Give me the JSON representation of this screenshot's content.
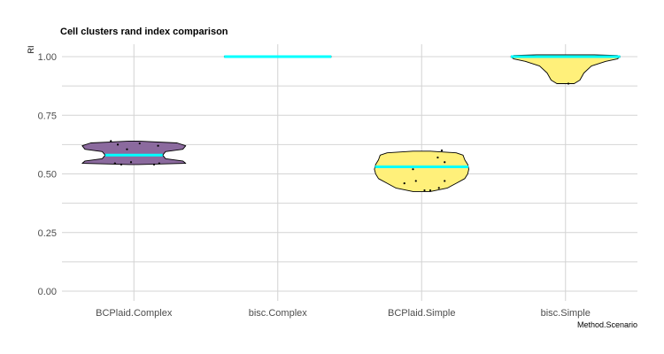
{
  "chart_data": {
    "type": "violin",
    "title": "Cell clusters rand index comparison",
    "xlabel": "Method.Scenario",
    "ylabel": "RI",
    "categories": [
      "BCPlaid.Complex",
      "bisc.Complex",
      "BCPlaid.Simple",
      "bisc.Simple"
    ],
    "ylim": [
      -0.03,
      1.05
    ],
    "yticks": [
      0.0,
      0.25,
      0.5,
      0.75,
      1.0
    ],
    "ytick_labels": [
      "0.00",
      "0.25",
      "0.50",
      "0.75",
      "1.00"
    ],
    "grid": true,
    "median_color": "#00ffff",
    "violins": [
      {
        "category": "BCPlaid.Complex",
        "fill": "#8b6a9e",
        "median": 0.58,
        "profile": [
          [
            0.54,
            0.08
          ],
          [
            0.545,
            0.9
          ],
          [
            0.555,
            0.85
          ],
          [
            0.565,
            0.55
          ],
          [
            0.58,
            0.5
          ],
          [
            0.595,
            0.55
          ],
          [
            0.605,
            0.85
          ],
          [
            0.62,
            0.9
          ],
          [
            0.632,
            0.75
          ],
          [
            0.64,
            0.08
          ]
        ],
        "points": [
          [
            -0.4,
            0.64
          ],
          [
            -0.28,
            0.625
          ],
          [
            -0.12,
            0.605
          ],
          [
            0.1,
            0.63
          ],
          [
            0.42,
            0.62
          ],
          [
            -0.33,
            0.545
          ],
          [
            -0.22,
            0.54
          ],
          [
            -0.05,
            0.55
          ],
          [
            0.35,
            0.54
          ],
          [
            0.44,
            0.545
          ]
        ]
      },
      {
        "category": "bisc.Complex",
        "fill": "#fff07a",
        "median": 1.0,
        "profile": [
          [
            0.997,
            0.05
          ],
          [
            1.0,
            0.93
          ],
          [
            1.003,
            0.05
          ]
        ],
        "points": [
          [
            -0.4,
            1.0
          ],
          [
            -0.25,
            1.0
          ],
          [
            -0.2,
            1.0
          ],
          [
            -0.16,
            1.0
          ],
          [
            0.02,
            1.0
          ],
          [
            0.08,
            1.0
          ],
          [
            0.2,
            1.0
          ],
          [
            0.4,
            1.0
          ]
        ]
      },
      {
        "category": "BCPlaid.Simple",
        "fill": "#fff07a",
        "median": 0.53,
        "profile": [
          [
            0.425,
            0.15
          ],
          [
            0.44,
            0.45
          ],
          [
            0.46,
            0.6
          ],
          [
            0.48,
            0.75
          ],
          [
            0.5,
            0.8
          ],
          [
            0.52,
            0.82
          ],
          [
            0.54,
            0.8
          ],
          [
            0.56,
            0.75
          ],
          [
            0.58,
            0.72
          ],
          [
            0.59,
            0.6
          ],
          [
            0.597,
            0.15
          ]
        ],
        "points": [
          [
            -0.35,
            0.53
          ],
          [
            -0.3,
            0.46
          ],
          [
            -0.15,
            0.52
          ],
          [
            -0.1,
            0.47
          ],
          [
            0.05,
            0.43
          ],
          [
            0.15,
            0.43
          ],
          [
            0.28,
            0.57
          ],
          [
            0.35,
            0.6
          ],
          [
            0.4,
            0.55
          ],
          [
            0.4,
            0.47
          ],
          [
            0.3,
            0.44
          ]
        ]
      },
      {
        "category": "bisc.Simple",
        "fill": "#fff07a",
        "median": 1.0,
        "profile": [
          [
            0.885,
            0.15
          ],
          [
            0.9,
            0.25
          ],
          [
            0.93,
            0.32
          ],
          [
            0.96,
            0.45
          ],
          [
            0.98,
            0.7
          ],
          [
            0.99,
            0.9
          ],
          [
            1.0,
            0.95
          ],
          [
            1.005,
            0.9
          ],
          [
            1.008,
            0.5
          ]
        ],
        "points": [
          [
            -0.3,
            1.0
          ],
          [
            0.0,
            1.0
          ],
          [
            0.35,
            1.0
          ],
          [
            0.42,
            1.0
          ],
          [
            0.05,
            0.885
          ]
        ]
      }
    ]
  }
}
